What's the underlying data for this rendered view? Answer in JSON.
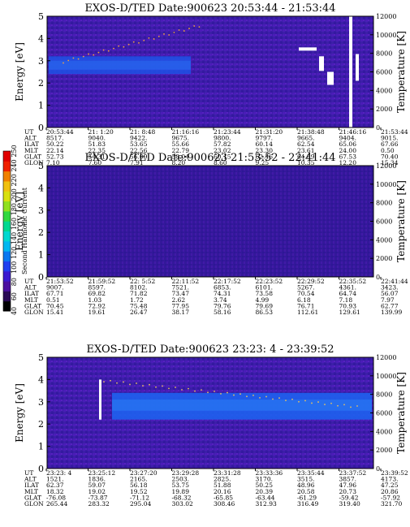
{
  "chart_data": [
    {
      "type": "heatmap",
      "title": "EXOS-D/TED   Date:900623  20:53:44 - 21:53:44",
      "ylabel": "Energy [eV]",
      "y2label": "Temperature [K]",
      "ylim": [
        0,
        5
      ],
      "y_ticks": [
        "0",
        "1",
        "2",
        "3",
        "4",
        "5"
      ],
      "y2lim": [
        0,
        12000
      ],
      "y2_ticks": [
        "0",
        "2000",
        "4000",
        "6000",
        "8000",
        "10000",
        "12000"
      ],
      "table": {
        "labels": [
          "UT",
          "ALT",
          "ILAT",
          "MLT",
          "GLAT",
          "GLON"
        ],
        "columns": [
          [
            "20:53:44",
            "8517.",
            "50.22",
            "22.14",
            "52.73",
            "7.10"
          ],
          [
            "21: 1:20",
            "9040.",
            "51.83",
            "22.35",
            "54.31",
            "7.60"
          ],
          [
            "21: 8:48",
            "9422.",
            "53.65",
            "22.56",
            "56.09",
            "7.91"
          ],
          [
            "21:16:16",
            "9675.",
            "55.66",
            "22.79",
            "58.04",
            "8.20"
          ],
          [
            "21:23:44",
            "9800.",
            "57.82",
            "23.02",
            "60.15",
            "8.60"
          ],
          [
            "21:31:20",
            "9797.",
            "60.14",
            "23.30",
            "62.46",
            "9.25"
          ],
          [
            "21:38:48",
            "9665.",
            "62.54",
            "23.61",
            "64.89",
            "10.35"
          ],
          [
            "21:46:16",
            "9404.",
            "65.06",
            "24.00",
            "67.53",
            "12.20"
          ],
          [
            "21:53:44",
            "9015.",
            "67.66",
            "0.50",
            "70.40",
            "15.34"
          ]
        ]
      }
    },
    {
      "type": "heatmap",
      "title": "EXOS-D/TED   Date:900623  21:53:52 - 22:41:44",
      "ylabel": "Energy [eV]",
      "y2label": "Temperature [K]",
      "ylim": [
        0,
        5
      ],
      "y_ticks": [
        "0",
        "1",
        "2",
        "3",
        "4",
        "5"
      ],
      "y2lim": [
        0,
        12000
      ],
      "y2_ticks": [
        "0",
        "2000",
        "4000",
        "6000",
        "8000",
        "10000",
        "12000"
      ],
      "table": {
        "labels": [
          "UT",
          "ALT",
          "ILAT",
          "MLT",
          "GLAT",
          "GLON"
        ],
        "columns": [
          [
            "21:53:52",
            "9007.",
            "67.71",
            "0.51",
            "70.45",
            "15.41"
          ],
          [
            "21:59:52",
            "8597.",
            "69.82",
            "1.03",
            "72.92",
            "19.61"
          ],
          [
            "22: 5:52",
            "8102.",
            "71.82",
            "1.72",
            "75.48",
            "26.47"
          ],
          [
            "22:11:52",
            "7521.",
            "73.47",
            "2.62",
            "77.95",
            "38.17"
          ],
          [
            "22:17:52",
            "6853.",
            "74.31",
            "3.74",
            "79.76",
            "58.16"
          ],
          [
            "22:23:52",
            "6101.",
            "73.58",
            "4.99",
            "79.69",
            "86.53"
          ],
          [
            "22:29:52",
            "5267.",
            "70.54",
            "6.18",
            "76.71",
            "112.61"
          ],
          [
            "22:35:52",
            "4361.",
            "64.74",
            "7.18",
            "70.93",
            "129.61"
          ],
          [
            "22:41:44",
            "3423.",
            "56.07",
            "7.97",
            "62.77",
            "139.99"
          ]
        ]
      }
    },
    {
      "type": "heatmap",
      "title": "EXOS-D/TED   Date:900623  23:23: 4 - 23:39:52",
      "ylabel": "Energy [eV]",
      "y2label": "Temperature [K]",
      "ylim": [
        0,
        5
      ],
      "y_ticks": [
        "0",
        "1",
        "2",
        "3",
        "4",
        "5"
      ],
      "y2lim": [
        0,
        12000
      ],
      "y2_ticks": [
        "0",
        "2000",
        "4000",
        "6000",
        "8000",
        "10000",
        "12000"
      ],
      "table": {
        "labels": [
          "UT",
          "ALT",
          "ILAT",
          "MLT",
          "GLAT",
          "GLON"
        ],
        "columns": [
          [
            "23:23: 4",
            "1521.",
            "62.37",
            "18.32",
            "-76.08",
            "265.44"
          ],
          [
            "23:25:12",
            "1836.",
            "59.07",
            "19.02",
            "-73.87",
            "283.32"
          ],
          [
            "23:27:20",
            "2165.",
            "56.18",
            "19.52",
            "-71.12",
            "295.04"
          ],
          [
            "23:29:28",
            "2503.",
            "53.75",
            "19.89",
            "-68.32",
            "303.02"
          ],
          [
            "23:31:28",
            "2825.",
            "51.88",
            "20.16",
            "-65.85",
            "308.46"
          ],
          [
            "23:33:36",
            "3170.",
            "50.25",
            "20.39",
            "-63.44",
            "312.93"
          ],
          [
            "23:35:44",
            "3515.",
            "48.96",
            "20.58",
            "-61.29",
            "316.49"
          ],
          [
            "23:37:52",
            "3857.",
            "47.96",
            "20.73",
            "-59.42",
            "319.40"
          ],
          [
            "23:39:52",
            "4173.",
            "47.25",
            "20.86",
            "-57.92",
            "321.70"
          ]
        ]
      }
    }
  ],
  "colorbar": {
    "label": "Second Harmonic Current",
    "ticks": [
      "40",
      "60",
      "80",
      "100",
      "120",
      "140",
      "160",
      "180",
      "200",
      "220",
      "240",
      "250"
    ],
    "colors": [
      "#000000",
      "#2a0a55",
      "#4b10a0",
      "#3a1ad0",
      "#2040f0",
      "#0a78f0",
      "#00b8f0",
      "#00d8d0",
      "#00d890",
      "#30d840",
      "#90e020",
      "#d8e010",
      "#f0c010",
      "#f08000",
      "#f02000",
      "#e00000"
    ]
  }
}
